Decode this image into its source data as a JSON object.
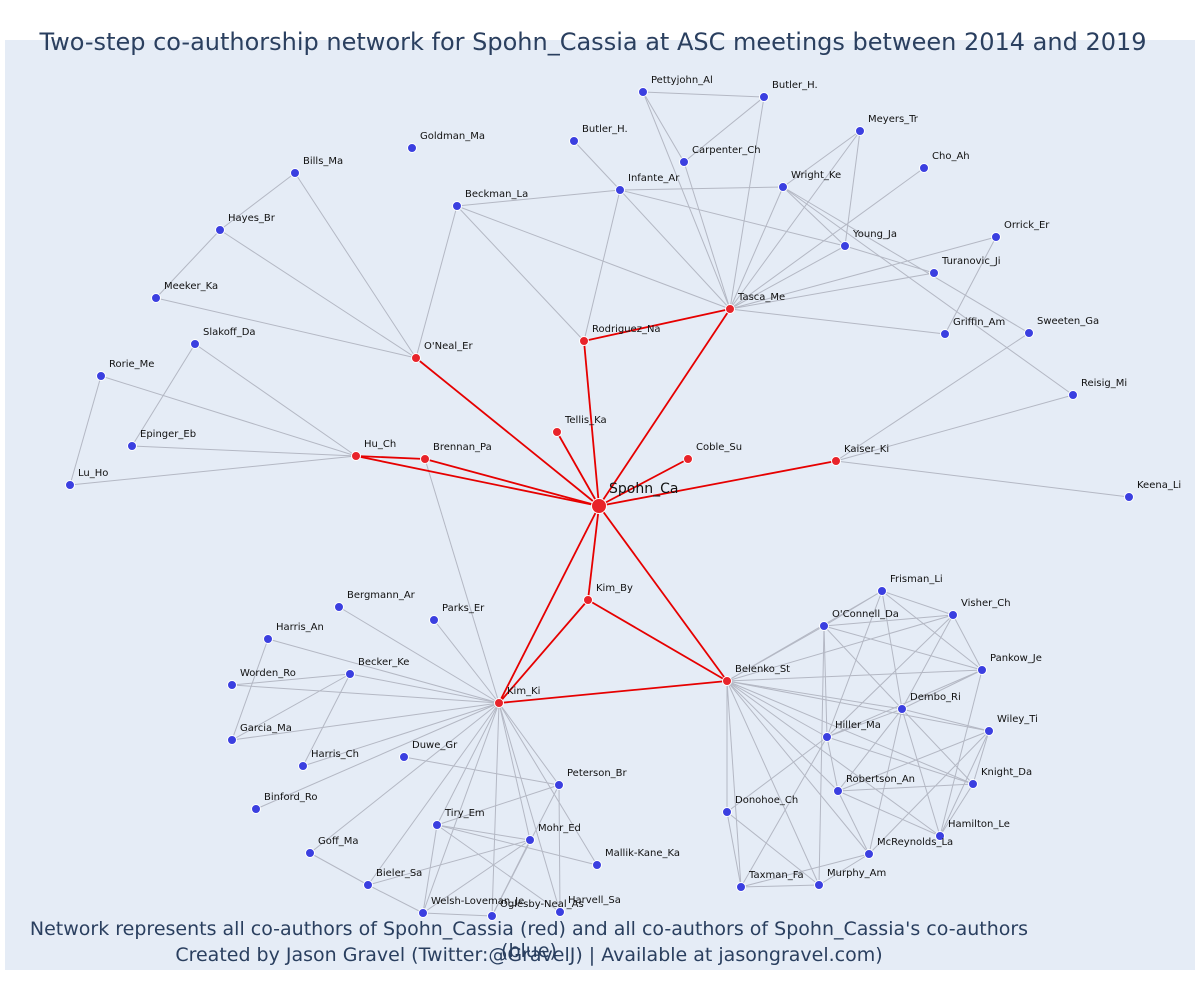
{
  "title": "Two-step co-authorship network for Spohn_Cassia at ASC meetings between 2014 and 2019",
  "captions": {
    "line1": "Network represents all co-authors of Spohn_Cassia (red) and all co-authors of Spohn_Cassia's co-authors (blue)",
    "line2": "Created by Jason Gravel (Twitter:@GravelJ) | Available at jasongravel.com)"
  },
  "colors": {
    "primary_node": "#e8232a",
    "secondary_node": "#3b3fe0",
    "primary_edge": "#e60000",
    "secondary_edge": "#b4b8c4"
  },
  "nodes": [
    {
      "id": "Spohn_Ca",
      "group": "center"
    },
    {
      "id": "O'Neal_Er",
      "group": "primary"
    },
    {
      "id": "Rodriguez_Na",
      "group": "primary"
    },
    {
      "id": "Tasca_Me",
      "group": "primary"
    },
    {
      "id": "Tellis_Ka",
      "group": "primary"
    },
    {
      "id": "Coble_Su",
      "group": "primary"
    },
    {
      "id": "Hu_Ch",
      "group": "primary"
    },
    {
      "id": "Brennan_Pa",
      "group": "primary"
    },
    {
      "id": "Kaiser_Ki",
      "group": "primary"
    },
    {
      "id": "Kim_By",
      "group": "primary"
    },
    {
      "id": "Kim_Ki",
      "group": "primary"
    },
    {
      "id": "Belenko_St",
      "group": "primary"
    },
    {
      "id": "Pettyjohn_Al",
      "group": "secondary"
    },
    {
      "id": "Butler_H. (1)",
      "label": "Butler_H.",
      "group": "secondary"
    },
    {
      "id": "Meyers_Tr",
      "group": "secondary"
    },
    {
      "id": "Goldman_Ma",
      "group": "secondary"
    },
    {
      "id": "Butler_H. (2)",
      "label": "Butler_H.",
      "group": "secondary"
    },
    {
      "id": "Carpenter_Ch",
      "group": "secondary"
    },
    {
      "id": "Cho_Ah",
      "group": "secondary"
    },
    {
      "id": "Bills_Ma",
      "group": "secondary"
    },
    {
      "id": "Infante_Ar",
      "group": "secondary"
    },
    {
      "id": "Wright_Ke",
      "group": "secondary"
    },
    {
      "id": "Beckman_La",
      "group": "secondary"
    },
    {
      "id": "Hayes_Br",
      "group": "secondary"
    },
    {
      "id": "Young_Ja",
      "group": "secondary"
    },
    {
      "id": "Orrick_Er",
      "group": "secondary"
    },
    {
      "id": "Turanovic_Ji",
      "group": "secondary"
    },
    {
      "id": "Meeker_Ka",
      "group": "secondary"
    },
    {
      "id": "Griffin_Am",
      "group": "secondary"
    },
    {
      "id": "Sweeten_Ga",
      "group": "secondary"
    },
    {
      "id": "Slakoff_Da",
      "group": "secondary"
    },
    {
      "id": "Rorie_Me",
      "group": "secondary"
    },
    {
      "id": "Reisig_Mi",
      "group": "secondary"
    },
    {
      "id": "Epinger_Eb",
      "group": "secondary"
    },
    {
      "id": "Lu_Ho",
      "group": "secondary"
    },
    {
      "id": "Keena_Li",
      "group": "secondary"
    },
    {
      "id": "Bergmann_Ar",
      "group": "secondary"
    },
    {
      "id": "Parks_Er",
      "group": "secondary"
    },
    {
      "id": "Harris_An",
      "group": "secondary"
    },
    {
      "id": "Becker_Ke",
      "group": "secondary"
    },
    {
      "id": "Worden_Ro",
      "group": "secondary"
    },
    {
      "id": "Garcia_Ma",
      "group": "secondary"
    },
    {
      "id": "Harris_Ch",
      "group": "secondary"
    },
    {
      "id": "Duwe_Gr",
      "group": "secondary"
    },
    {
      "id": "Binford_Ro",
      "group": "secondary"
    },
    {
      "id": "Peterson_Br",
      "group": "secondary"
    },
    {
      "id": "Tiry_Em",
      "group": "secondary"
    },
    {
      "id": "Mohr_Ed",
      "group": "secondary"
    },
    {
      "id": "Goff_Ma",
      "group": "secondary"
    },
    {
      "id": "Mallik-Kane_Ka",
      "group": "secondary"
    },
    {
      "id": "Bieler_Sa",
      "group": "secondary"
    },
    {
      "id": "Harvell_Sa",
      "group": "secondary"
    },
    {
      "id": "Welsh-Loveman_Je",
      "group": "secondary"
    },
    {
      "id": "Oglesby-Neal_As",
      "group": "secondary"
    },
    {
      "id": "Frisman_Li",
      "group": "secondary"
    },
    {
      "id": "O'Connell_Da",
      "group": "secondary"
    },
    {
      "id": "Visher_Ch",
      "group": "secondary"
    },
    {
      "id": "Pankow_Je",
      "group": "secondary"
    },
    {
      "id": "Dembo_Ri",
      "group": "secondary"
    },
    {
      "id": "Wiley_Ti",
      "group": "secondary"
    },
    {
      "id": "Hiller_Ma",
      "group": "secondary"
    },
    {
      "id": "Robertson_An",
      "group": "secondary"
    },
    {
      "id": "Knight_Da",
      "group": "secondary"
    },
    {
      "id": "Donohoe_Ch",
      "group": "secondary"
    },
    {
      "id": "Hamilton_Le",
      "group": "secondary"
    },
    {
      "id": "McReynolds_La",
      "group": "secondary"
    },
    {
      "id": "Taxman_Fa",
      "group": "secondary"
    },
    {
      "id": "Murphy_Am",
      "group": "secondary"
    }
  ],
  "primary_edges": [
    [
      "Spohn_Ca",
      "O'Neal_Er"
    ],
    [
      "Spohn_Ca",
      "Rodriguez_Na"
    ],
    [
      "Spohn_Ca",
      "Tasca_Me"
    ],
    [
      "Spohn_Ca",
      "Tellis_Ka"
    ],
    [
      "Spohn_Ca",
      "Coble_Su"
    ],
    [
      "Spohn_Ca",
      "Hu_Ch"
    ],
    [
      "Spohn_Ca",
      "Brennan_Pa"
    ],
    [
      "Spohn_Ca",
      "Kaiser_Ki"
    ],
    [
      "Spohn_Ca",
      "Kim_By"
    ],
    [
      "Spohn_Ca",
      "Kim_Ki"
    ],
    [
      "Spohn_Ca",
      "Belenko_St"
    ],
    [
      "Rodriguez_Na",
      "Tasca_Me"
    ],
    [
      "Hu_Ch",
      "Brennan_Pa"
    ],
    [
      "Kim_By",
      "Kim_Ki"
    ],
    [
      "Kim_By",
      "Belenko_St"
    ],
    [
      "Kim_Ki",
      "Belenko_St"
    ]
  ],
  "secondary_edges": [
    [
      "O'Neal_Er",
      "Bills_Ma"
    ],
    [
      "O'Neal_Er",
      "Hayes_Br"
    ],
    [
      "O'Neal_Er",
      "Meeker_Ka"
    ],
    [
      "O'Neal_Er",
      "Beckman_La"
    ],
    [
      "Bills_Ma",
      "Hayes_Br"
    ],
    [
      "Hayes_Br",
      "Meeker_Ka"
    ],
    [
      "Rodriguez_Na",
      "Beckman_La"
    ],
    [
      "Rodriguez_Na",
      "Infante_Ar"
    ],
    [
      "Tasca_Me",
      "Beckman_La"
    ],
    [
      "Beckman_La",
      "Infante_Ar"
    ],
    [
      "Infante_Ar",
      "Butler_H. (2)"
    ],
    [
      "Infante_Ar",
      "Tasca_Me"
    ],
    [
      "Infante_Ar",
      "Wright_Ke"
    ],
    [
      "Infante_Ar",
      "Young_Ja"
    ],
    [
      "Pettyjohn_Al",
      "Butler_H. (1)"
    ],
    [
      "Pettyjohn_Al",
      "Carpenter_Ch"
    ],
    [
      "Pettyjohn_Al",
      "Tasca_Me"
    ],
    [
      "Butler_H. (1)",
      "Carpenter_Ch"
    ],
    [
      "Butler_H. (1)",
      "Tasca_Me"
    ],
    [
      "Carpenter_Ch",
      "Tasca_Me"
    ],
    [
      "Meyers_Tr",
      "Wright_Ke"
    ],
    [
      "Meyers_Tr",
      "Young_Ja"
    ],
    [
      "Meyers_Tr",
      "Tasca_Me"
    ],
    [
      "Wright_Ke",
      "Tasca_Me"
    ],
    [
      "Wright_Ke",
      "Young_Ja"
    ],
    [
      "Wright_Ke",
      "Sweeten_Ga"
    ],
    [
      "Wright_Ke",
      "Reisig_Mi"
    ],
    [
      "Young_Ja",
      "Tasca_Me"
    ],
    [
      "Cho_Ah",
      "Tasca_Me"
    ],
    [
      "Orrick_Er",
      "Tasca_Me"
    ],
    [
      "Orrick_Er",
      "Griffin_Am"
    ],
    [
      "Turanovic_Ji",
      "Tasca_Me"
    ],
    [
      "Turanovic_Ji",
      "Young_Ja"
    ],
    [
      "Griffin_Am",
      "Tasca_Me"
    ],
    [
      "Hu_Ch",
      "Slakoff_Da"
    ],
    [
      "Hu_Ch",
      "Rorie_Me"
    ],
    [
      "Hu_Ch",
      "Epinger_Eb"
    ],
    [
      "Hu_Ch",
      "Lu_Ho"
    ],
    [
      "Slakoff_Da",
      "Epinger_Eb"
    ],
    [
      "Rorie_Me",
      "Lu_Ho"
    ],
    [
      "Kaiser_Ki",
      "Sweeten_Ga"
    ],
    [
      "Kaiser_Ki",
      "Reisig_Mi"
    ],
    [
      "Kaiser_Ki",
      "Keena_Li"
    ],
    [
      "Brennan_Pa",
      "Kim_Ki"
    ],
    [
      "Kim_Ki",
      "Bergmann_Ar"
    ],
    [
      "Kim_Ki",
      "Parks_Er"
    ],
    [
      "Kim_Ki",
      "Harris_An"
    ],
    [
      "Kim_Ki",
      "Becker_Ke"
    ],
    [
      "Kim_Ki",
      "Worden_Ro"
    ],
    [
      "Kim_Ki",
      "Garcia_Ma"
    ],
    [
      "Kim_Ki",
      "Harris_Ch"
    ],
    [
      "Kim_Ki",
      "Binford_Ro"
    ],
    [
      "Kim_Ki",
      "Goff_Ma"
    ],
    [
      "Kim_Ki",
      "Peterson_Br"
    ],
    [
      "Kim_Ki",
      "Tiry_Em"
    ],
    [
      "Kim_Ki",
      "Mohr_Ed"
    ],
    [
      "Kim_Ki",
      "Mallik-Kane_Ka"
    ],
    [
      "Kim_Ki",
      "Bieler_Sa"
    ],
    [
      "Kim_Ki",
      "Harvell_Sa"
    ],
    [
      "Kim_Ki",
      "Welsh-Loveman_Je"
    ],
    [
      "Kim_Ki",
      "Oglesby-Neal_As"
    ],
    [
      "Harris_An",
      "Garcia_Ma"
    ],
    [
      "Becker_Ke",
      "Worden_Ro"
    ],
    [
      "Becker_Ke",
      "Harris_Ch"
    ],
    [
      "Becker_Ke",
      "Garcia_Ma"
    ],
    [
      "Duwe_Gr",
      "Peterson_Br"
    ],
    [
      "Peterson_Br",
      "Tiry_Em"
    ],
    [
      "Peterson_Br",
      "Harvell_Sa"
    ],
    [
      "Peterson_Br",
      "Oglesby-Neal_As"
    ],
    [
      "Tiry_Em",
      "Mohr_Ed"
    ],
    [
      "Tiry_Em",
      "Welsh-Loveman_Je"
    ],
    [
      "Tiry_Em",
      "Harvell_Sa"
    ],
    [
      "Tiry_Em",
      "Mallik-Kane_Ka"
    ],
    [
      "Mohr_Ed",
      "Bieler_Sa"
    ],
    [
      "Mohr_Ed",
      "Welsh-Loveman_Je"
    ],
    [
      "Mohr_Ed",
      "Oglesby-Neal_As"
    ],
    [
      "Goff_Ma",
      "Bieler_Sa"
    ],
    [
      "Bieler_Sa",
      "Welsh-Loveman_Je"
    ],
    [
      "Welsh-Loveman_Je",
      "Oglesby-Neal_As"
    ],
    [
      "Belenko_St",
      "Frisman_Li"
    ],
    [
      "Belenko_St",
      "O'Connell_Da"
    ],
    [
      "Belenko_St",
      "Visher_Ch"
    ],
    [
      "Belenko_St",
      "Pankow_Je"
    ],
    [
      "Belenko_St",
      "Dembo_Ri"
    ],
    [
      "Belenko_St",
      "Wiley_Ti"
    ],
    [
      "Belenko_St",
      "Hiller_Ma"
    ],
    [
      "Belenko_St",
      "Robertson_An"
    ],
    [
      "Belenko_St",
      "Knight_Da"
    ],
    [
      "Belenko_St",
      "Donohoe_Ch"
    ],
    [
      "Belenko_St",
      "Hamilton_Le"
    ],
    [
      "Belenko_St",
      "McReynolds_La"
    ],
    [
      "Belenko_St",
      "Taxman_Fa"
    ],
    [
      "Belenko_St",
      "Murphy_Am"
    ],
    [
      "Frisman_Li",
      "O'Connell_Da"
    ],
    [
      "Frisman_Li",
      "Visher_Ch"
    ],
    [
      "Frisman_Li",
      "Pankow_Je"
    ],
    [
      "Frisman_Li",
      "Dembo_Ri"
    ],
    [
      "Frisman_Li",
      "Hiller_Ma"
    ],
    [
      "O'Connell_Da",
      "Visher_Ch"
    ],
    [
      "O'Connell_Da",
      "Pankow_Je"
    ],
    [
      "O'Connell_Da",
      "Dembo_Ri"
    ],
    [
      "O'Connell_Da",
      "Hiller_Ma"
    ],
    [
      "O'Connell_Da",
      "Murphy_Am"
    ],
    [
      "Visher_Ch",
      "Pankow_Je"
    ],
    [
      "Visher_Ch",
      "Dembo_Ri"
    ],
    [
      "Visher_Ch",
      "Hiller_Ma"
    ],
    [
      "Pankow_Je",
      "Dembo_Ri"
    ],
    [
      "Pankow_Je",
      "Hiller_Ma"
    ],
    [
      "Pankow_Je",
      "Hamilton_Le"
    ],
    [
      "Dembo_Ri",
      "Hiller_Ma"
    ],
    [
      "Dembo_Ri",
      "Robertson_An"
    ],
    [
      "Dembo_Ri",
      "Knight_Da"
    ],
    [
      "Dembo_Ri",
      "McReynolds_La"
    ],
    [
      "Dembo_Ri",
      "Hamilton_Le"
    ],
    [
      "Dembo_Ri",
      "Wiley_Ti"
    ],
    [
      "Wiley_Ti",
      "Robertson_An"
    ],
    [
      "Wiley_Ti",
      "Knight_Da"
    ],
    [
      "Wiley_Ti",
      "McReynolds_La"
    ],
    [
      "Wiley_Ti",
      "Hamilton_Le"
    ],
    [
      "Hiller_Ma",
      "Donohoe_Ch"
    ],
    [
      "Hiller_Ma",
      "Robertson_An"
    ],
    [
      "Hiller_Ma",
      "Knight_Da"
    ],
    [
      "Hiller_Ma",
      "Taxman_Fa"
    ],
    [
      "Robertson_An",
      "Knight_Da"
    ],
    [
      "Robertson_An",
      "Hamilton_Le"
    ],
    [
      "Robertson_An",
      "McReynolds_La"
    ],
    [
      "Knight_Da",
      "Hamilton_Le"
    ],
    [
      "Donohoe_Ch",
      "Taxman_Fa"
    ],
    [
      "Donohoe_Ch",
      "Murphy_Am"
    ],
    [
      "McReynolds_La",
      "Taxman_Fa"
    ],
    [
      "McReynolds_La",
      "Murphy_Am"
    ],
    [
      "Taxman_Fa",
      "Murphy_Am"
    ]
  ]
}
